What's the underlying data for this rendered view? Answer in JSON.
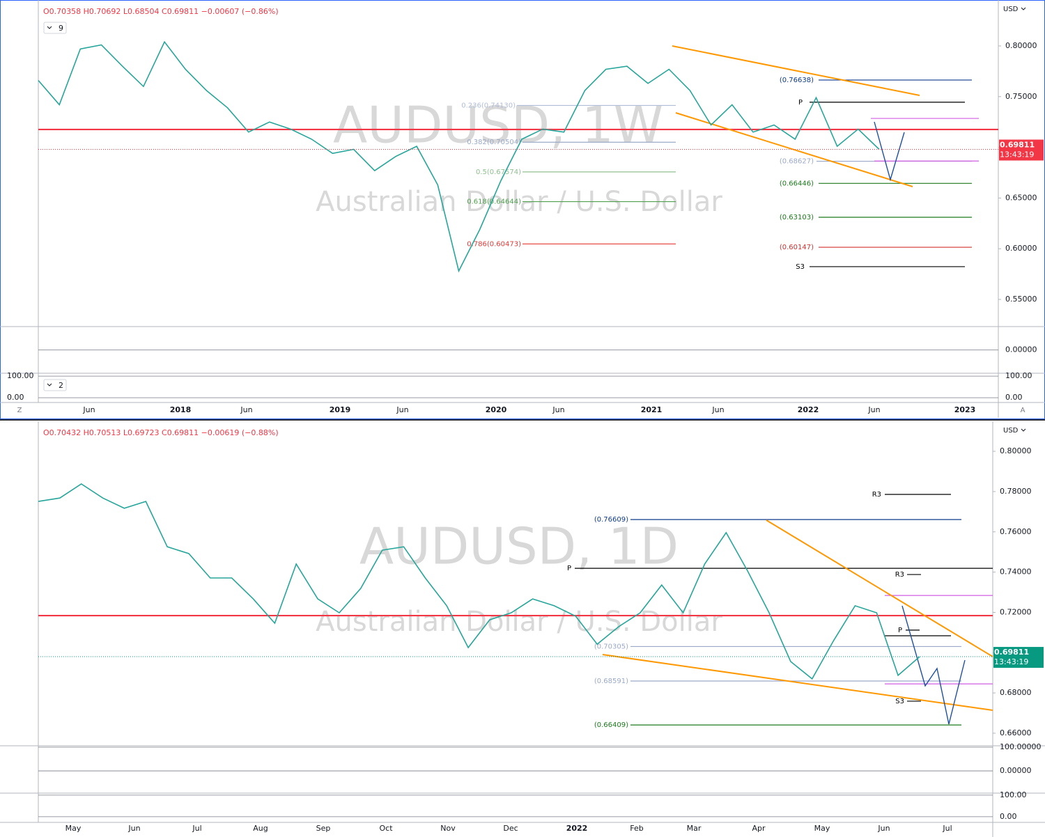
{
  "chart_data": [
    {
      "type": "line",
      "symbol": "AUDUSD, 1W",
      "subtitle": "Australian Dollar / U.S. Dollar",
      "ohlc": "O0.70358 H0.70692 L0.68504 C0.69811 −0.00607 (−0.86%)",
      "currency": "USD",
      "input": "9",
      "input2": "2",
      "last_price_label": "0.69811",
      "countdown": "13:43:19",
      "last_price_color": "#f23645",
      "ylim": [
        0.5239,
        0.8453
      ],
      "yticks": [
        {
          "value": 0.8,
          "label": "0.80000"
        },
        {
          "value": 0.75,
          "label": "0.75000"
        },
        {
          "value": 0.7,
          "label": "0.70000"
        },
        {
          "value": 0.65,
          "label": "0.65000"
        },
        {
          "value": 0.6,
          "label": "0.60000"
        },
        {
          "value": 0.55,
          "label": "0.55000"
        }
      ],
      "x_labels": [
        "Jun",
        "2018",
        "Jun",
        "2019",
        "Jun",
        "2020",
        "Jun",
        "2021",
        "Jun",
        "2022",
        "Jun",
        "2023"
      ],
      "series": [
        {
          "name": "AUDUSD",
          "color": "#26a69a",
          "values": [
            0.766,
            0.742,
            0.797,
            0.801,
            0.78,
            0.76,
            0.804,
            0.777,
            0.756,
            0.739,
            0.715,
            0.725,
            0.718,
            0.708,
            0.694,
            0.698,
            0.677,
            0.691,
            0.701,
            0.663,
            0.578,
            0.619,
            0.667,
            0.708,
            0.718,
            0.715,
            0.756,
            0.777,
            0.78,
            0.763,
            0.777,
            0.756,
            0.722,
            0.742,
            0.715,
            0.722,
            0.708,
            0.749,
            0.701,
            0.718,
            0.698
          ]
        }
      ],
      "levels": [
        {
          "value": 0.7176,
          "color": "#f23645"
        },
        {
          "value": 0.76638,
          "label": "(0.76638)",
          "color": "#0d3a8c"
        },
        {
          "value": 0.7445,
          "label": "P",
          "color": "#000000"
        },
        {
          "value": 0.7413,
          "label": "0.236(0.74130)",
          "color": "#b0bdd6"
        },
        {
          "value": 0.70504,
          "label": "0.382(0.70504)",
          "color": "#9aa9c9"
        },
        {
          "value": 0.67574,
          "label": "0.5(0.67574)",
          "color": "#8fc08f"
        },
        {
          "value": 0.64644,
          "label": "0.618(0.64644)",
          "color": "#4f9f4f"
        },
        {
          "value": 0.60473,
          "label": "0.786(0.60473)",
          "color": "#e53935"
        },
        {
          "value": 0.68627,
          "label": "(0.68627)",
          "color": "#9aa9c9"
        },
        {
          "value": 0.66446,
          "label": "(0.66446)",
          "color": "#1b7a1b"
        },
        {
          "value": 0.63103,
          "label": "(0.63103)",
          "color": "#1b7a1b"
        },
        {
          "value": 0.60147,
          "label": "(0.60147)",
          "color": "#d32f2f"
        },
        {
          "value": 0.5823,
          "label": "S3",
          "color": "#000000"
        },
        {
          "value": 0.7285,
          "color": "#d05ce3"
        },
        {
          "value": 0.6865,
          "color": "#d05ce3"
        }
      ],
      "panes": [
        {
          "ylim": [
            -0.02,
            0.02
          ],
          "yticks": [
            {
              "value": 0,
              "label": "0.00000"
            }
          ]
        },
        {
          "ylim": [
            -19,
            110
          ],
          "yticks": [
            {
              "value": 100,
              "label": "100.00"
            },
            {
              "value": 0,
              "label": "0.00"
            }
          ]
        }
      ]
    },
    {
      "type": "line",
      "symbol": "AUDUSD, 1D",
      "subtitle": "Australian Dollar / U.S. Dollar",
      "ohlc": "O0.70432 H0.70513 L0.69723 C0.69811 −0.00619 (−0.88%)",
      "currency": "USD",
      "last_price_label": "0.69811",
      "countdown": "13:43:19",
      "last_price_color": "#089981",
      "ylim": [
        0.6541,
        0.8149
      ],
      "yticks": [
        {
          "value": 0.8,
          "label": "0.80000"
        },
        {
          "value": 0.78,
          "label": "0.78000"
        },
        {
          "value": 0.76,
          "label": "0.76000"
        },
        {
          "value": 0.74,
          "label": "0.74000"
        },
        {
          "value": 0.72,
          "label": "0.72000"
        },
        {
          "value": 0.7,
          "label": "0.70000"
        },
        {
          "value": 0.68,
          "label": "0.68000"
        },
        {
          "value": 0.66,
          "label": "0.66000"
        }
      ],
      "x_labels": [
        "May",
        "Jun",
        "Jul",
        "Aug",
        "Sep",
        "Oct",
        "Nov",
        "Dec",
        "2022",
        "Feb",
        "Mar",
        "Apr",
        "May",
        "Jun",
        "Jul"
      ],
      "series": [
        {
          "name": "AUDUSD",
          "color": "#26a69a",
          "values": [
            0.7751,
            0.7768,
            0.7838,
            0.7768,
            0.7717,
            0.7751,
            0.7526,
            0.7492,
            0.7371,
            0.7371,
            0.7267,
            0.7146,
            0.744,
            0.7267,
            0.7198,
            0.7319,
            0.7509,
            0.7526,
            0.7371,
            0.7233,
            0.7025,
            0.7163,
            0.7198,
            0.7267,
            0.7233,
            0.7181,
            0.7042,
            0.7129,
            0.7198,
            0.7336,
            0.7198,
            0.744,
            0.7596,
            0.7405,
            0.7198,
            0.6956,
            0.687,
            0.706,
            0.7233,
            0.7198,
            0.6887,
            0.698
          ]
        }
      ],
      "levels": [
        {
          "value": 0.7184,
          "color": "#f23645"
        },
        {
          "value": 0.76609,
          "label": "(0.76609)",
          "color": "#0d3a8c"
        },
        {
          "value": 0.7419,
          "label": "P",
          "color": "#000000"
        },
        {
          "value": 0.7786,
          "label": "R3",
          "color": "#000000"
        },
        {
          "value": 0.7388,
          "label": "R3",
          "color": "#000000"
        },
        {
          "value": 0.7112,
          "label": "P",
          "color": "#000000"
        },
        {
          "value": 0.7084,
          "color": "#000000"
        },
        {
          "value": 0.70305,
          "label": "(0.70305)",
          "color": "#9aa9c9"
        },
        {
          "value": 0.68591,
          "label": "(0.68591)",
          "color": "#9aa9c9"
        },
        {
          "value": 0.6759,
          "label": "S3",
          "color": "#000000"
        },
        {
          "value": 0.66409,
          "label": "(0.66409)",
          "color": "#1b7a1b"
        },
        {
          "value": 0.7284,
          "color": "#d05ce3"
        },
        {
          "value": 0.6845,
          "color": "#d05ce3"
        }
      ],
      "panes": [
        {
          "ylim": [
            -91,
            103
          ],
          "yticks": [
            {
              "value": 100,
              "label": "100.00000"
            },
            {
              "value": 0,
              "label": "0.00000"
            }
          ]
        },
        {
          "ylim": [
            -23,
            106
          ],
          "yticks": [
            {
              "value": 100,
              "label": "100.00"
            },
            {
              "value": 0,
              "label": "0.00"
            }
          ]
        }
      ]
    }
  ],
  "toolbar": {
    "left": "Z",
    "right": "A"
  }
}
